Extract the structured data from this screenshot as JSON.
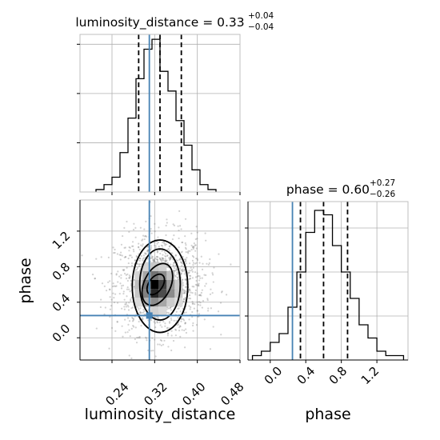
{
  "chart_data": [
    {
      "panel": "marginal-top",
      "type": "histogram",
      "variable": "luminosity_distance",
      "title": {
        "main": "luminosity_distance = 0.33",
        "sup": "+0.04",
        "sub": "−0.04"
      },
      "xlim": [
        0.18,
        0.48
      ],
      "bins": [
        {
          "x0": 0.21,
          "x1": 0.225,
          "count": 1
        },
        {
          "x0": 0.225,
          "x1": 0.24,
          "count": 3
        },
        {
          "x0": 0.24,
          "x1": 0.255,
          "count": 6
        },
        {
          "x0": 0.255,
          "x1": 0.27,
          "count": 16
        },
        {
          "x0": 0.27,
          "x1": 0.285,
          "count": 30
        },
        {
          "x0": 0.285,
          "x1": 0.3,
          "count": 46
        },
        {
          "x0": 0.3,
          "x1": 0.315,
          "count": 58
        },
        {
          "x0": 0.315,
          "x1": 0.33,
          "count": 62
        },
        {
          "x0": 0.33,
          "x1": 0.345,
          "count": 49
        },
        {
          "x0": 0.345,
          "x1": 0.36,
          "count": 41
        },
        {
          "x0": 0.36,
          "x1": 0.375,
          "count": 29
        },
        {
          "x0": 0.375,
          "x1": 0.39,
          "count": 19
        },
        {
          "x0": 0.39,
          "x1": 0.405,
          "count": 9
        },
        {
          "x0": 0.405,
          "x1": 0.42,
          "count": 3
        },
        {
          "x0": 0.42,
          "x1": 0.435,
          "count": 1
        }
      ],
      "ymax": 64,
      "quantiles": [
        0.29,
        0.33,
        0.37
      ],
      "truth": 0.31,
      "grid": true
    },
    {
      "panel": "marginal-right",
      "type": "histogram",
      "variable": "phase",
      "title": {
        "main": "phase = 0.60",
        "sup": "+0.27",
        "sub": "−0.26"
      },
      "xlim": [
        -0.25,
        1.55
      ],
      "xticks": [
        "0.0",
        "0.4",
        "0.8",
        "1.2"
      ],
      "bins": [
        {
          "x0": -0.2,
          "x1": -0.1,
          "count": 1
        },
        {
          "x0": -0.1,
          "x1": 0.0,
          "count": 2
        },
        {
          "x0": 0.0,
          "x1": 0.1,
          "count": 4
        },
        {
          "x0": 0.1,
          "x1": 0.2,
          "count": 6
        },
        {
          "x0": 0.2,
          "x1": 0.3,
          "count": 12
        },
        {
          "x0": 0.3,
          "x1": 0.4,
          "count": 20
        },
        {
          "x0": 0.4,
          "x1": 0.5,
          "count": 29
        },
        {
          "x0": 0.5,
          "x1": 0.6,
          "count": 34
        },
        {
          "x0": 0.6,
          "x1": 0.7,
          "count": 33
        },
        {
          "x0": 0.7,
          "x1": 0.8,
          "count": 26
        },
        {
          "x0": 0.8,
          "x1": 0.9,
          "count": 20
        },
        {
          "x0": 0.9,
          "x1": 1.0,
          "count": 14
        },
        {
          "x0": 1.0,
          "x1": 1.1,
          "count": 8
        },
        {
          "x0": 1.1,
          "x1": 1.2,
          "count": 5
        },
        {
          "x0": 1.2,
          "x1": 1.3,
          "count": 2
        },
        {
          "x0": 1.3,
          "x1": 1.4,
          "count": 1
        },
        {
          "x0": 1.4,
          "x1": 1.5,
          "count": 1
        }
      ],
      "ymax": 36,
      "quantiles": [
        0.34,
        0.6,
        0.87
      ],
      "truth": 0.25,
      "xlabel": "phase",
      "grid": true
    },
    {
      "panel": "joint",
      "type": "scatter",
      "xlim": [
        0.18,
        0.48
      ],
      "ylim": [
        -0.25,
        1.55
      ],
      "xticks": [
        "0.24",
        "0.32",
        "0.40",
        "0.48"
      ],
      "yticks": [
        "0.0",
        "0.4",
        "0.8",
        "1.2"
      ],
      "xlabel": "luminosity_distance",
      "ylabel": "phase",
      "center": [
        0.33,
        0.6
      ],
      "spread": [
        0.04,
        0.27
      ],
      "density_cells": [
        {
          "x": 0.32,
          "y": 0.5,
          "level": 0.85
        },
        {
          "x": 0.32,
          "y": 0.6,
          "level": 1.0
        },
        {
          "x": 0.335,
          "y": 0.5,
          "level": 0.7
        },
        {
          "x": 0.335,
          "y": 0.6,
          "level": 0.75
        },
        {
          "x": 0.305,
          "y": 0.6,
          "level": 0.55
        },
        {
          "x": 0.305,
          "y": 0.5,
          "level": 0.5
        },
        {
          "x": 0.32,
          "y": 0.7,
          "level": 0.55
        },
        {
          "x": 0.335,
          "y": 0.7,
          "level": 0.45
        },
        {
          "x": 0.35,
          "y": 0.5,
          "level": 0.45
        },
        {
          "x": 0.35,
          "y": 0.6,
          "level": 0.4
        },
        {
          "x": 0.32,
          "y": 0.4,
          "level": 0.45
        },
        {
          "x": 0.305,
          "y": 0.4,
          "level": 0.3
        },
        {
          "x": 0.335,
          "y": 0.4,
          "level": 0.35
        },
        {
          "x": 0.305,
          "y": 0.7,
          "level": 0.35
        },
        {
          "x": 0.29,
          "y": 0.6,
          "level": 0.25
        },
        {
          "x": 0.29,
          "y": 0.5,
          "level": 0.22
        },
        {
          "x": 0.35,
          "y": 0.7,
          "level": 0.25
        },
        {
          "x": 0.32,
          "y": 0.8,
          "level": 0.22
        },
        {
          "x": 0.365,
          "y": 0.6,
          "level": 0.2
        },
        {
          "x": 0.365,
          "y": 0.5,
          "level": 0.22
        },
        {
          "x": 0.335,
          "y": 0.8,
          "level": 0.18
        },
        {
          "x": 0.305,
          "y": 0.8,
          "level": 0.16
        },
        {
          "x": 0.29,
          "y": 0.7,
          "level": 0.17
        },
        {
          "x": 0.29,
          "y": 0.4,
          "level": 0.15
        },
        {
          "x": 0.35,
          "y": 0.4,
          "level": 0.2
        },
        {
          "x": 0.32,
          "y": 0.3,
          "level": 0.18
        },
        {
          "x": 0.335,
          "y": 0.3,
          "level": 0.15
        },
        {
          "x": 0.365,
          "y": 0.4,
          "level": 0.14
        }
      ],
      "contours": [
        {
          "cx": 0.322,
          "cy": 0.6,
          "rx": 0.013,
          "ry": 0.13,
          "rotate": 35
        },
        {
          "cx": 0.325,
          "cy": 0.6,
          "rx": 0.025,
          "ry": 0.25,
          "rotate": 25
        },
        {
          "cx": 0.33,
          "cy": 0.6,
          "rx": 0.038,
          "ry": 0.4,
          "rotate": 0
        },
        {
          "cx": 0.33,
          "cy": 0.58,
          "rx": 0.052,
          "ry": 0.52,
          "rotate": 0
        }
      ],
      "truth": {
        "x": 0.31,
        "y": 0.25
      },
      "grid": true
    }
  ],
  "colors": {
    "truth": "#4682b4",
    "hist": "#000000",
    "scatter": "#7f7f7f",
    "grid": "#b0b0b0"
  }
}
